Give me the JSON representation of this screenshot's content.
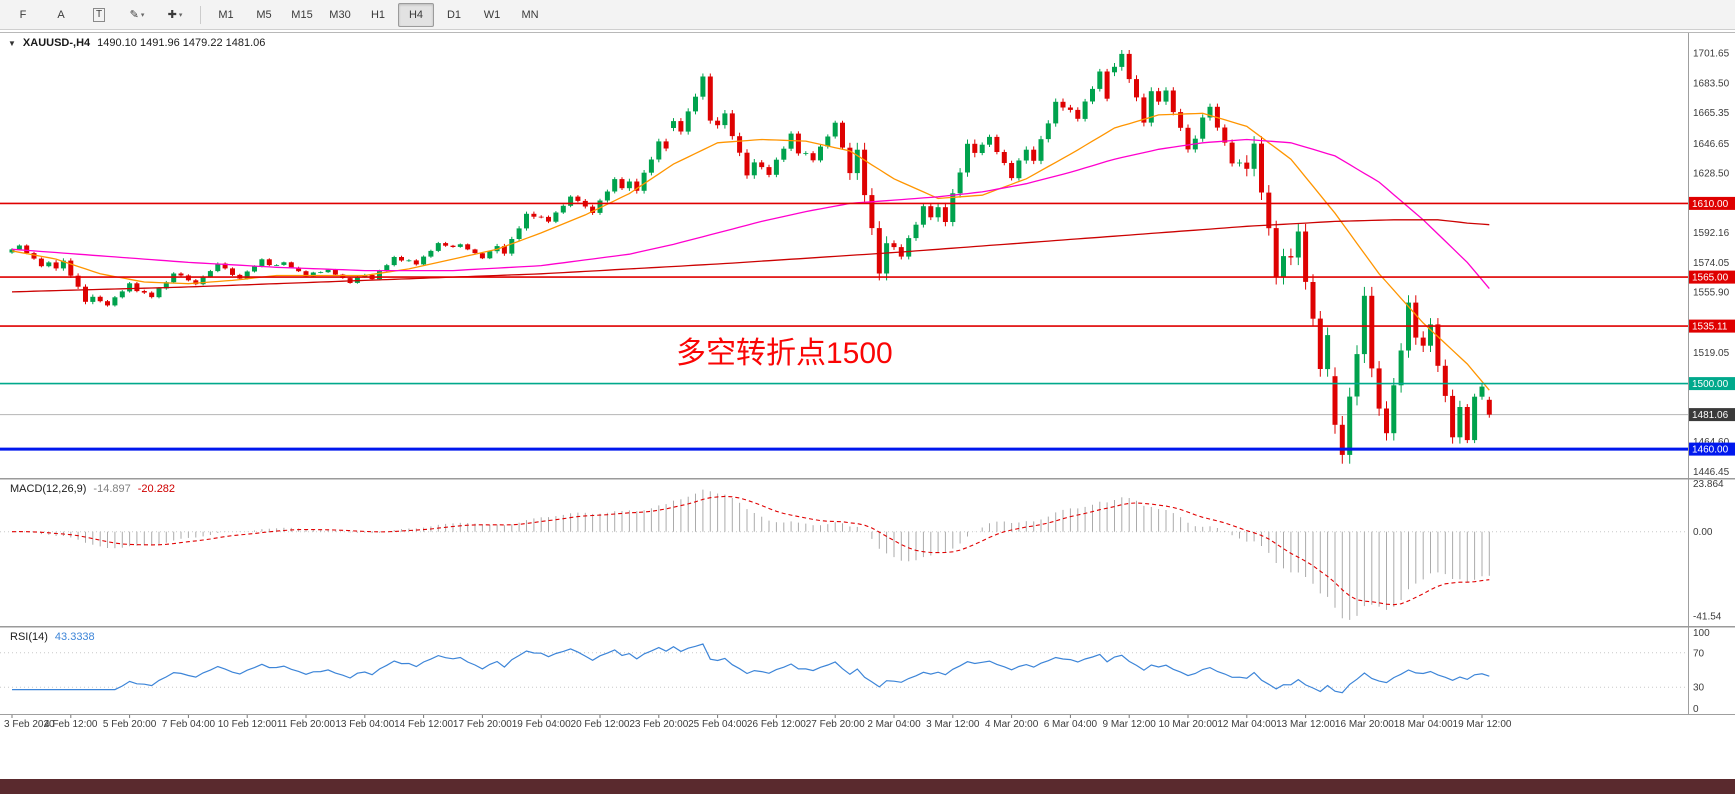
{
  "icons": {
    "dropdown": "▼",
    "caret": "▾"
  },
  "toolbar": {
    "tools": [
      {
        "id": "templates-tool",
        "label": "F",
        "caret": false
      },
      {
        "id": "text-annotation-tool",
        "label": "A",
        "caret": false
      },
      {
        "id": "text-label-tool",
        "label": "T",
        "caret": false,
        "boxed": true
      },
      {
        "id": "draw-tool",
        "label": "✎",
        "caret": true
      },
      {
        "id": "crosshair-tool",
        "label": "✚",
        "caret": true
      }
    ],
    "timeframes": [
      "M1",
      "M5",
      "M15",
      "M30",
      "H1",
      "H4",
      "D1",
      "W1",
      "MN"
    ],
    "active_timeframe": "H4"
  },
  "chart": {
    "symbol_label": "XAUUSD-,H4",
    "ohlc_text": "1490.10 1491.96 1479.22 1481.06",
    "annotation": {
      "text": "多空转折点1500",
      "color": "#fa0505"
    }
  },
  "chart_data": {
    "type": "candlestick",
    "symbol": "XAUUSD-",
    "timeframe": "H4",
    "current": {
      "open": 1490.1,
      "high": 1491.96,
      "low": 1479.22,
      "close": 1481.06
    },
    "candle_colors": {
      "up": "#00a24d",
      "down": "#de0202"
    },
    "price_axis": {
      "min": 1443,
      "max": 1714,
      "gridlines": [
        "1701.65",
        "1683.50",
        "1665.35",
        "1646.65",
        "1628.50",
        "1592.16",
        "1574.05",
        "1555.90",
        "1519.05",
        "1464.60",
        "1446.45"
      ]
    },
    "hlines": [
      {
        "price": 1610.0,
        "label": "1610.00",
        "color": "#df0000",
        "width": 1.6
      },
      {
        "price": 1565.0,
        "label": "1565.00",
        "color": "#df0000",
        "width": 1.6
      },
      {
        "price": 1535.11,
        "label": "1535.11",
        "color": "#df0000",
        "width": 1.6
      },
      {
        "price": 1500.0,
        "label": "1500.00",
        "color": "#00a98c",
        "width": 1.6
      },
      {
        "price": 1460.0,
        "label": "1460.00",
        "color": "#0018ee",
        "width": 3
      }
    ],
    "current_line": {
      "price": 1481.06,
      "label": "1481.06",
      "badge_color": "#3a3a3a",
      "line_color": "#b4b4b4"
    },
    "last_day_candles": 4,
    "intraday": {
      "up": [
        0.22,
        0.05,
        0.38,
        0.62,
        0.95
      ],
      "down": [
        0.78,
        0.95,
        0.62,
        0.38,
        0.05
      ],
      "wick": 0.05
    },
    "days": [
      [
        1580.0,
        1585.0,
        1571.0,
        1574.0
      ],
      [
        1574.0,
        1576.5,
        1548.5,
        1553.0
      ],
      [
        1553.0,
        1562.0,
        1547.0,
        1556.5
      ],
      [
        1556.5,
        1568.0,
        1552.0,
        1566.0
      ],
      [
        1566.0,
        1574.0,
        1560.0,
        1570.3
      ],
      [
        1570.3,
        1576.5,
        1563.5,
        1572.3
      ],
      [
        1572.3,
        1574.5,
        1565.0,
        1567.8
      ],
      [
        1567.8,
        1570.0,
        1561.0,
        1565.3
      ],
      [
        1565.3,
        1578.0,
        1563.0,
        1575.1
      ],
      [
        1575.1,
        1586.5,
        1572.0,
        1584.2
      ],
      [
        1584.2,
        1585.5,
        1576.0,
        1580.8
      ],
      [
        1580.8,
        1605.0,
        1578.0,
        1601.9
      ],
      [
        1601.9,
        1615.0,
        1598.0,
        1611.5
      ],
      [
        1611.5,
        1626.0,
        1603.0,
        1619.3
      ],
      [
        1619.3,
        1649.5,
        1616.0,
        1643.5
      ],
      [
        1656.0,
        1689.3,
        1652.0,
        1660.5
      ],
      [
        1660.5,
        1667.0,
        1625.0,
        1635.0
      ],
      [
        1635.0,
        1654.0,
        1626.0,
        1640.5
      ],
      [
        1640.5,
        1660.5,
        1635.0,
        1644.0
      ],
      [
        1644.0,
        1647.0,
        1563.0,
        1585.7
      ],
      [
        1585.7,
        1610.0,
        1575.8,
        1601.5
      ],
      [
        1601.5,
        1649.0,
        1596.0,
        1640.8
      ],
      [
        1640.8,
        1652.0,
        1624.0,
        1636.2
      ],
      [
        1636.2,
        1674.0,
        1634.0,
        1668.5
      ],
      [
        1668.5,
        1692.1,
        1660.0,
        1673.9
      ],
      [
        1690.0,
        1703.6,
        1657.0,
        1678.5
      ],
      [
        1678.5,
        1680.9,
        1641.0,
        1649.5
      ],
      [
        1649.5,
        1670.9,
        1632.5,
        1634.9
      ],
      [
        1634.9,
        1651.0,
        1560.5,
        1577.8
      ],
      [
        1577.8,
        1597.5,
        1504.2,
        1529.6
      ],
      [
        1504.5,
        1559.0,
        1451.1,
        1509.3
      ],
      [
        1509.3,
        1553.9,
        1465.3,
        1528.1
      ],
      [
        1528.1,
        1540.0,
        1463.4,
        1485.7
      ],
      [
        1485.7,
        1500.0,
        1463.7,
        1481.1
      ]
    ],
    "ma_lines": [
      {
        "id": "ma-fast-orange",
        "color": "#ff9500",
        "points": [
          [
            0,
            1581
          ],
          [
            6,
            1576
          ],
          [
            12,
            1567
          ],
          [
            18,
            1562
          ],
          [
            24,
            1561
          ],
          [
            30,
            1563
          ],
          [
            36,
            1566
          ],
          [
            42,
            1566
          ],
          [
            48,
            1566
          ],
          [
            54,
            1570
          ],
          [
            60,
            1576
          ],
          [
            66,
            1582
          ],
          [
            72,
            1592
          ],
          [
            78,
            1603
          ],
          [
            84,
            1616
          ],
          [
            90,
            1634
          ],
          [
            96,
            1647
          ],
          [
            102,
            1649
          ],
          [
            108,
            1648
          ],
          [
            114,
            1642
          ],
          [
            120,
            1625
          ],
          [
            126,
            1613
          ],
          [
            132,
            1615
          ],
          [
            138,
            1625
          ],
          [
            144,
            1640
          ],
          [
            150,
            1656
          ],
          [
            156,
            1664
          ],
          [
            162,
            1665
          ],
          [
            168,
            1657
          ],
          [
            174,
            1637
          ],
          [
            180,
            1604
          ],
          [
            186,
            1567
          ],
          [
            192,
            1537
          ],
          [
            198,
            1512
          ],
          [
            201,
            1496
          ]
        ]
      },
      {
        "id": "ma-medium-magenta",
        "color": "#ff00ce",
        "points": [
          [
            0,
            1582
          ],
          [
            12,
            1578
          ],
          [
            24,
            1574
          ],
          [
            36,
            1571
          ],
          [
            48,
            1569
          ],
          [
            60,
            1569
          ],
          [
            72,
            1572
          ],
          [
            84,
            1579
          ],
          [
            90,
            1585
          ],
          [
            96,
            1592
          ],
          [
            102,
            1599
          ],
          [
            108,
            1605
          ],
          [
            114,
            1610
          ],
          [
            120,
            1612
          ],
          [
            126,
            1614
          ],
          [
            132,
            1617
          ],
          [
            138,
            1622
          ],
          [
            144,
            1629
          ],
          [
            150,
            1637
          ],
          [
            156,
            1643
          ],
          [
            162,
            1647
          ],
          [
            168,
            1649
          ],
          [
            174,
            1647
          ],
          [
            180,
            1639
          ],
          [
            186,
            1623
          ],
          [
            192,
            1600
          ],
          [
            198,
            1574
          ],
          [
            201,
            1558
          ]
        ]
      },
      {
        "id": "ma-slow-red",
        "color": "#cc0202",
        "points": [
          [
            0,
            1556
          ],
          [
            24,
            1559
          ],
          [
            48,
            1563
          ],
          [
            72,
            1567
          ],
          [
            96,
            1573
          ],
          [
            120,
            1580
          ],
          [
            144,
            1588
          ],
          [
            156,
            1592
          ],
          [
            168,
            1596
          ],
          [
            180,
            1599
          ],
          [
            188,
            1600
          ],
          [
            194,
            1600
          ],
          [
            198,
            1598
          ],
          [
            201,
            1597
          ]
        ]
      }
    ],
    "macd": {
      "label": "MACD(12,26,9)",
      "value_main": "-14.897",
      "value_signal": "-20.282",
      "axis_labels": [
        "23.864",
        "0.00",
        "-41.54"
      ],
      "scale_max": 26,
      "scale_min": -46,
      "histogram_color": "#ababab",
      "signal_color": "#e00202"
    },
    "rsi": {
      "label": "RSI(14)",
      "value": "43.3338",
      "levels": [
        70,
        30
      ],
      "axis_labels": [
        "100",
        "70",
        "30",
        "0"
      ],
      "line_color": "#3d85d8"
    },
    "time_axis": [
      "3 Feb 2020",
      "4 Feb 12:00",
      "5 Feb 20:00",
      "7 Feb 04:00",
      "10 Feb 12:00",
      "11 Feb 20:00",
      "13 Feb 04:00",
      "14 Feb 12:00",
      "17 Feb 20:00",
      "19 Feb 04:00",
      "20 Feb 12:00",
      "23 Feb 20:00",
      "25 Feb 04:00",
      "26 Feb 12:00",
      "27 Feb 20:00",
      "2 Mar 04:00",
      "3 Mar 12:00",
      "4 Mar 20:00",
      "6 Mar 04:00",
      "9 Mar 12:00",
      "10 Mar 20:00",
      "12 Mar 04:00",
      "13 Mar 12:00",
      "16 Mar 20:00",
      "18 Mar 04:00",
      "19 Mar 12:00"
    ]
  }
}
